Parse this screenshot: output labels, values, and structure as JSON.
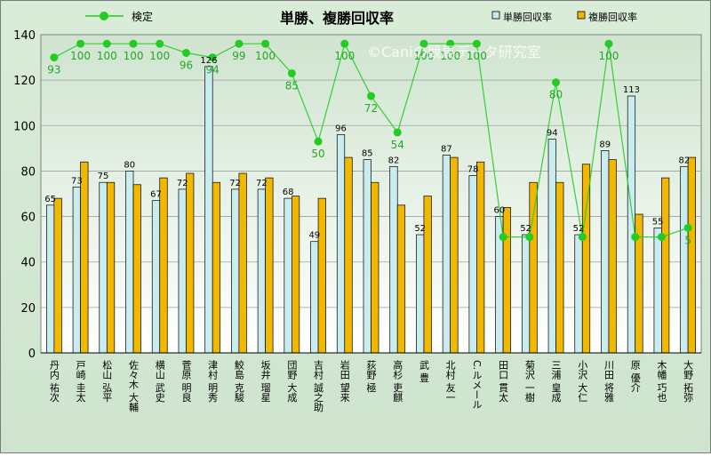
{
  "chart_data": {
    "type": "bar",
    "title": "単勝、複勝回収率",
    "watermark": "©Caniの競馬データ研究室",
    "ylim": [
      0,
      140
    ],
    "yticks": [
      0,
      20,
      40,
      60,
      80,
      100,
      120,
      140
    ],
    "grid": true,
    "legend_placement": "top",
    "categories": [
      "丹内 祐次",
      "戸崎 圭太",
      "松山 弘平",
      "佐々木 大輔",
      "横山 武史",
      "菅原 明良",
      "津村 明秀",
      "鮫島 克駿",
      "坂井 瑠星",
      "団野 大成",
      "吉村 誠之助",
      "岩田 望来",
      "荻野 極",
      "高杉 吏麒",
      "武 豊",
      "北村 友一",
      "C.ルメール",
      "田口 貫太",
      "菊沢 一樹",
      "三浦 皇成",
      "小沢 大仁",
      "川田 将雅",
      "原 優介",
      "木幡 巧也",
      "大野 拓弥"
    ],
    "series": [
      {
        "name": "単勝回収率",
        "type": "bar",
        "color": "#c9ecef",
        "values": [
          65,
          73,
          75,
          80,
          67,
          72,
          126,
          72,
          72,
          68,
          49,
          96,
          85,
          82,
          52,
          87,
          78,
          60,
          52,
          94,
          52,
          89,
          113,
          55,
          82
        ],
        "labels": [
          "65",
          "73",
          "75",
          "80",
          "67",
          "72",
          "126",
          "72",
          "72",
          "68",
          "49",
          "96",
          "85",
          "82",
          "52",
          "87",
          "78",
          "60",
          "52",
          "94",
          "52",
          "89",
          "113",
          "55",
          "82"
        ]
      },
      {
        "name": "複勝回収率",
        "type": "bar",
        "color": "#f2b800",
        "values": [
          68,
          84,
          75,
          74,
          77,
          79,
          75,
          79,
          77,
          69,
          68,
          86,
          75,
          65,
          69,
          86,
          84,
          64,
          75,
          75,
          83,
          85,
          61,
          77,
          86
        ]
      },
      {
        "name": "検定",
        "type": "line",
        "color": "#22cc22",
        "values": [
          130,
          136,
          136,
          136,
          136,
          132,
          130,
          136,
          136,
          123,
          93,
          136,
          113,
          97,
          136,
          136,
          136,
          51,
          51,
          119,
          51,
          136,
          51,
          51,
          55
        ],
        "labels": [
          "93",
          "100",
          "100",
          "100",
          "100",
          "96",
          "94",
          "99",
          "100",
          "85",
          "50",
          "100",
          "72",
          "54",
          "100",
          "100",
          "100",
          "",
          "",
          "80",
          "",
          "100",
          "",
          "",
          "5"
        ]
      }
    ]
  }
}
